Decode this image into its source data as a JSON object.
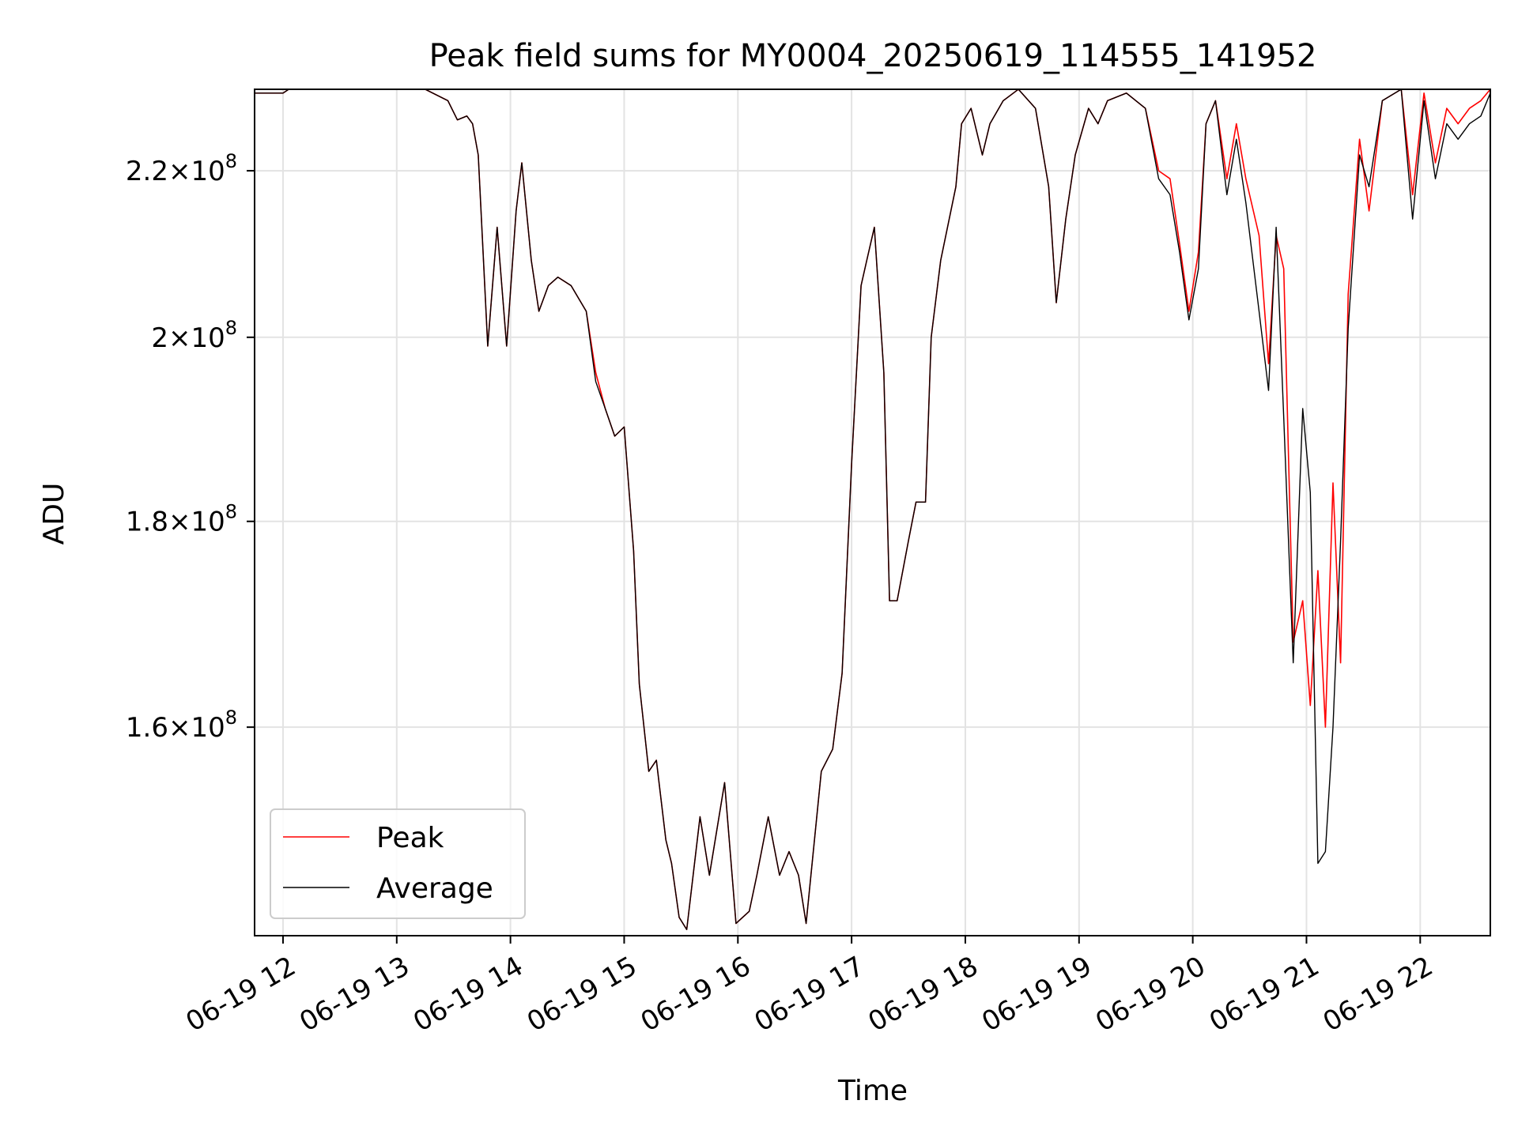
{
  "chart_data": {
    "type": "line",
    "title": "Peak field sums for MY0004_20250619_114555_141952",
    "xlabel": "Time",
    "ylabel": "ADU",
    "y_scale": "log",
    "grid": true,
    "legend_position": "lower-left",
    "xlim": [
      "2025-06-19 11:45",
      "2025-06-19 22:37"
    ],
    "ylim": [
      142000000,
      230500000
    ],
    "x_ticks": [
      {
        "value": "2025-06-19 12:00",
        "label": "06-19 12"
      },
      {
        "value": "2025-06-19 13:00",
        "label": "06-19 13"
      },
      {
        "value": "2025-06-19 14:00",
        "label": "06-19 14"
      },
      {
        "value": "2025-06-19 15:00",
        "label": "06-19 15"
      },
      {
        "value": "2025-06-19 16:00",
        "label": "06-19 16"
      },
      {
        "value": "2025-06-19 17:00",
        "label": "06-19 17"
      },
      {
        "value": "2025-06-19 18:00",
        "label": "06-19 18"
      },
      {
        "value": "2025-06-19 19:00",
        "label": "06-19 19"
      },
      {
        "value": "2025-06-19 20:00",
        "label": "06-19 20"
      },
      {
        "value": "2025-06-19 21:00",
        "label": "06-19 21"
      },
      {
        "value": "2025-06-19 22:00",
        "label": "06-19 22"
      }
    ],
    "y_ticks": [
      {
        "value": 160000000,
        "mantissa": "1.6",
        "exponent": "8"
      },
      {
        "value": 180000000,
        "mantissa": "1.8",
        "exponent": "8"
      },
      {
        "value": 200000000,
        "mantissa": "2",
        "exponent": "8"
      },
      {
        "value": 220000000,
        "mantissa": "2.2",
        "exponent": "8"
      }
    ],
    "series": [
      {
        "name": "Peak",
        "color": "#ff0000",
        "points": [
          [
            "2025-06-19 11:45",
            230000000
          ],
          [
            "2025-06-19 12:00",
            230000000
          ],
          [
            "2025-06-19 12:03",
            231000000
          ],
          [
            "2025-06-19 12:30",
            231000000
          ],
          [
            "2025-06-19 13:15",
            230500000
          ],
          [
            "2025-06-19 13:27",
            229000000
          ],
          [
            "2025-06-19 13:32",
            226500000
          ],
          [
            "2025-06-19 13:37",
            227000000
          ],
          [
            "2025-06-19 13:40",
            226000000
          ],
          [
            "2025-06-19 13:43",
            222000000
          ],
          [
            "2025-06-19 13:48",
            199000000
          ],
          [
            "2025-06-19 13:53",
            213000000
          ],
          [
            "2025-06-19 13:58",
            199000000
          ],
          [
            "2025-06-19 14:03",
            215000000
          ],
          [
            "2025-06-19 14:06",
            221000000
          ],
          [
            "2025-06-19 14:11",
            209000000
          ],
          [
            "2025-06-19 14:15",
            203000000
          ],
          [
            "2025-06-19 14:20",
            206000000
          ],
          [
            "2025-06-19 14:25",
            207000000
          ],
          [
            "2025-06-19 14:32",
            206000000
          ],
          [
            "2025-06-19 14:40",
            203000000
          ],
          [
            "2025-06-19 14:45",
            196000000
          ],
          [
            "2025-06-19 14:50",
            192000000
          ],
          [
            "2025-06-19 14:55",
            189000000
          ],
          [
            "2025-06-19 15:00",
            190000000
          ],
          [
            "2025-06-19 15:05",
            177000000
          ],
          [
            "2025-06-19 15:08",
            164000000
          ],
          [
            "2025-06-19 15:13",
            156000000
          ],
          [
            "2025-06-19 15:17",
            157000000
          ],
          [
            "2025-06-19 15:22",
            150000000
          ],
          [
            "2025-06-19 15:25",
            148000000
          ],
          [
            "2025-06-19 15:29",
            143500000
          ],
          [
            "2025-06-19 15:33",
            142500000
          ],
          [
            "2025-06-19 15:40",
            152000000
          ],
          [
            "2025-06-19 15:45",
            147000000
          ],
          [
            "2025-06-19 15:53",
            155000000
          ],
          [
            "2025-06-19 15:59",
            143000000
          ],
          [
            "2025-06-19 16:06",
            144000000
          ],
          [
            "2025-06-19 16:10",
            147000000
          ],
          [
            "2025-06-19 16:16",
            152000000
          ],
          [
            "2025-06-19 16:22",
            147000000
          ],
          [
            "2025-06-19 16:27",
            149000000
          ],
          [
            "2025-06-19 16:32",
            147000000
          ],
          [
            "2025-06-19 16:36",
            143000000
          ],
          [
            "2025-06-19 16:44",
            156000000
          ],
          [
            "2025-06-19 16:50",
            158000000
          ],
          [
            "2025-06-19 16:55",
            165000000
          ],
          [
            "2025-06-19 17:00",
            186000000
          ],
          [
            "2025-06-19 17:05",
            206000000
          ],
          [
            "2025-06-19 17:08",
            209000000
          ],
          [
            "2025-06-19 17:12",
            213000000
          ],
          [
            "2025-06-19 17:17",
            196000000
          ],
          [
            "2025-06-19 17:20",
            172000000
          ],
          [
            "2025-06-19 17:24",
            172000000
          ],
          [
            "2025-06-19 17:30",
            178000000
          ],
          [
            "2025-06-19 17:34",
            182000000
          ],
          [
            "2025-06-19 17:39",
            182000000
          ],
          [
            "2025-06-19 17:42",
            200000000
          ],
          [
            "2025-06-19 17:47",
            209000000
          ],
          [
            "2025-06-19 17:55",
            218000000
          ],
          [
            "2025-06-19 17:58",
            226000000
          ],
          [
            "2025-06-19 18:03",
            228000000
          ],
          [
            "2025-06-19 18:09",
            222000000
          ],
          [
            "2025-06-19 18:13",
            226000000
          ],
          [
            "2025-06-19 18:20",
            229000000
          ],
          [
            "2025-06-19 18:28",
            231000000
          ],
          [
            "2025-06-19 18:37",
            228000000
          ],
          [
            "2025-06-19 18:44",
            218000000
          ],
          [
            "2025-06-19 18:48",
            204000000
          ],
          [
            "2025-06-19 18:53",
            214000000
          ],
          [
            "2025-06-19 18:58",
            222000000
          ],
          [
            "2025-06-19 19:05",
            228000000
          ],
          [
            "2025-06-19 19:10",
            226000000
          ],
          [
            "2025-06-19 19:15",
            229000000
          ],
          [
            "2025-06-19 19:25",
            230000000
          ],
          [
            "2025-06-19 19:35",
            228000000
          ],
          [
            "2025-06-19 19:42",
            220000000
          ],
          [
            "2025-06-19 19:48",
            219000000
          ],
          [
            "2025-06-19 19:53",
            211000000
          ],
          [
            "2025-06-19 19:58",
            203000000
          ],
          [
            "2025-06-19 20:03",
            210000000
          ],
          [
            "2025-06-19 20:07",
            226000000
          ],
          [
            "2025-06-19 20:12",
            229000000
          ],
          [
            "2025-06-19 20:18",
            219000000
          ],
          [
            "2025-06-19 20:23",
            226000000
          ],
          [
            "2025-06-19 20:28",
            219000000
          ],
          [
            "2025-06-19 20:35",
            212000000
          ],
          [
            "2025-06-19 20:40",
            197000000
          ],
          [
            "2025-06-19 20:44",
            212000000
          ],
          [
            "2025-06-19 20:48",
            208000000
          ],
          [
            "2025-06-19 20:53",
            168000000
          ],
          [
            "2025-06-19 20:58",
            172000000
          ],
          [
            "2025-06-19 21:02",
            162000000
          ],
          [
            "2025-06-19 21:06",
            175000000
          ],
          [
            "2025-06-19 21:10",
            160000000
          ],
          [
            "2025-06-19 21:14",
            184000000
          ],
          [
            "2025-06-19 21:18",
            166000000
          ],
          [
            "2025-06-19 21:22",
            205000000
          ],
          [
            "2025-06-19 21:28",
            224000000
          ],
          [
            "2025-06-19 21:33",
            215000000
          ],
          [
            "2025-06-19 21:40",
            229000000
          ],
          [
            "2025-06-19 21:50",
            230500000
          ],
          [
            "2025-06-19 21:56",
            217000000
          ],
          [
            "2025-06-19 22:02",
            230000000
          ],
          [
            "2025-06-19 22:08",
            221000000
          ],
          [
            "2025-06-19 22:14",
            228000000
          ],
          [
            "2025-06-19 22:20",
            226000000
          ],
          [
            "2025-06-19 22:26",
            228000000
          ],
          [
            "2025-06-19 22:32",
            229000000
          ],
          [
            "2025-06-19 22:37",
            230500000
          ]
        ]
      },
      {
        "name": "Average",
        "color": "#000000",
        "points": [
          [
            "2025-06-19 11:45",
            230000000
          ],
          [
            "2025-06-19 12:00",
            230000000
          ],
          [
            "2025-06-19 12:03",
            231000000
          ],
          [
            "2025-06-19 12:30",
            231000000
          ],
          [
            "2025-06-19 13:15",
            230500000
          ],
          [
            "2025-06-19 13:27",
            229000000
          ],
          [
            "2025-06-19 13:32",
            226500000
          ],
          [
            "2025-06-19 13:37",
            227000000
          ],
          [
            "2025-06-19 13:40",
            226000000
          ],
          [
            "2025-06-19 13:43",
            222000000
          ],
          [
            "2025-06-19 13:48",
            199000000
          ],
          [
            "2025-06-19 13:53",
            213000000
          ],
          [
            "2025-06-19 13:58",
            199000000
          ],
          [
            "2025-06-19 14:03",
            215000000
          ],
          [
            "2025-06-19 14:06",
            221000000
          ],
          [
            "2025-06-19 14:11",
            209000000
          ],
          [
            "2025-06-19 14:15",
            203000000
          ],
          [
            "2025-06-19 14:20",
            206000000
          ],
          [
            "2025-06-19 14:25",
            207000000
          ],
          [
            "2025-06-19 14:32",
            206000000
          ],
          [
            "2025-06-19 14:40",
            203000000
          ],
          [
            "2025-06-19 14:45",
            195000000
          ],
          [
            "2025-06-19 14:50",
            192000000
          ],
          [
            "2025-06-19 14:55",
            189000000
          ],
          [
            "2025-06-19 15:00",
            190000000
          ],
          [
            "2025-06-19 15:05",
            177000000
          ],
          [
            "2025-06-19 15:08",
            164000000
          ],
          [
            "2025-06-19 15:13",
            156000000
          ],
          [
            "2025-06-19 15:17",
            157000000
          ],
          [
            "2025-06-19 15:22",
            150000000
          ],
          [
            "2025-06-19 15:25",
            148000000
          ],
          [
            "2025-06-19 15:29",
            143500000
          ],
          [
            "2025-06-19 15:33",
            142500000
          ],
          [
            "2025-06-19 15:40",
            152000000
          ],
          [
            "2025-06-19 15:45",
            147000000
          ],
          [
            "2025-06-19 15:53",
            155000000
          ],
          [
            "2025-06-19 15:59",
            143000000
          ],
          [
            "2025-06-19 16:06",
            144000000
          ],
          [
            "2025-06-19 16:10",
            147000000
          ],
          [
            "2025-06-19 16:16",
            152000000
          ],
          [
            "2025-06-19 16:22",
            147000000
          ],
          [
            "2025-06-19 16:27",
            149000000
          ],
          [
            "2025-06-19 16:32",
            147000000
          ],
          [
            "2025-06-19 16:36",
            143000000
          ],
          [
            "2025-06-19 16:44",
            156000000
          ],
          [
            "2025-06-19 16:50",
            158000000
          ],
          [
            "2025-06-19 16:55",
            165000000
          ],
          [
            "2025-06-19 17:00",
            186000000
          ],
          [
            "2025-06-19 17:05",
            206000000
          ],
          [
            "2025-06-19 17:08",
            209000000
          ],
          [
            "2025-06-19 17:12",
            213000000
          ],
          [
            "2025-06-19 17:17",
            196000000
          ],
          [
            "2025-06-19 17:20",
            172000000
          ],
          [
            "2025-06-19 17:24",
            172000000
          ],
          [
            "2025-06-19 17:30",
            178000000
          ],
          [
            "2025-06-19 17:34",
            182000000
          ],
          [
            "2025-06-19 17:39",
            182000000
          ],
          [
            "2025-06-19 17:42",
            200000000
          ],
          [
            "2025-06-19 17:47",
            209000000
          ],
          [
            "2025-06-19 17:55",
            218000000
          ],
          [
            "2025-06-19 17:58",
            226000000
          ],
          [
            "2025-06-19 18:03",
            228000000
          ],
          [
            "2025-06-19 18:09",
            222000000
          ],
          [
            "2025-06-19 18:13",
            226000000
          ],
          [
            "2025-06-19 18:20",
            229000000
          ],
          [
            "2025-06-19 18:28",
            231000000
          ],
          [
            "2025-06-19 18:37",
            228000000
          ],
          [
            "2025-06-19 18:44",
            218000000
          ],
          [
            "2025-06-19 18:48",
            204000000
          ],
          [
            "2025-06-19 18:53",
            214000000
          ],
          [
            "2025-06-19 18:58",
            222000000
          ],
          [
            "2025-06-19 19:05",
            228000000
          ],
          [
            "2025-06-19 19:10",
            226000000
          ],
          [
            "2025-06-19 19:15",
            229000000
          ],
          [
            "2025-06-19 19:25",
            230000000
          ],
          [
            "2025-06-19 19:35",
            228000000
          ],
          [
            "2025-06-19 19:42",
            219000000
          ],
          [
            "2025-06-19 19:48",
            217000000
          ],
          [
            "2025-06-19 19:53",
            210000000
          ],
          [
            "2025-06-19 19:58",
            202000000
          ],
          [
            "2025-06-19 20:03",
            208000000
          ],
          [
            "2025-06-19 20:07",
            226000000
          ],
          [
            "2025-06-19 20:12",
            229000000
          ],
          [
            "2025-06-19 20:18",
            217000000
          ],
          [
            "2025-06-19 20:23",
            224000000
          ],
          [
            "2025-06-19 20:28",
            216000000
          ],
          [
            "2025-06-19 20:35",
            203000000
          ],
          [
            "2025-06-19 20:40",
            194000000
          ],
          [
            "2025-06-19 20:44",
            213000000
          ],
          [
            "2025-06-19 20:48",
            191000000
          ],
          [
            "2025-06-19 20:53",
            166000000
          ],
          [
            "2025-06-19 20:58",
            192000000
          ],
          [
            "2025-06-19 21:02",
            183000000
          ],
          [
            "2025-06-19 21:06",
            148000000
          ],
          [
            "2025-06-19 21:10",
            149000000
          ],
          [
            "2025-06-19 21:14",
            160000000
          ],
          [
            "2025-06-19 21:18",
            178000000
          ],
          [
            "2025-06-19 21:22",
            201000000
          ],
          [
            "2025-06-19 21:28",
            222000000
          ],
          [
            "2025-06-19 21:33",
            218000000
          ],
          [
            "2025-06-19 21:40",
            229000000
          ],
          [
            "2025-06-19 21:50",
            230500000
          ],
          [
            "2025-06-19 21:56",
            214000000
          ],
          [
            "2025-06-19 22:02",
            229000000
          ],
          [
            "2025-06-19 22:08",
            219000000
          ],
          [
            "2025-06-19 22:14",
            226000000
          ],
          [
            "2025-06-19 22:20",
            224000000
          ],
          [
            "2025-06-19 22:26",
            226000000
          ],
          [
            "2025-06-19 22:32",
            227000000
          ],
          [
            "2025-06-19 22:37",
            230000000
          ]
        ]
      }
    ]
  }
}
